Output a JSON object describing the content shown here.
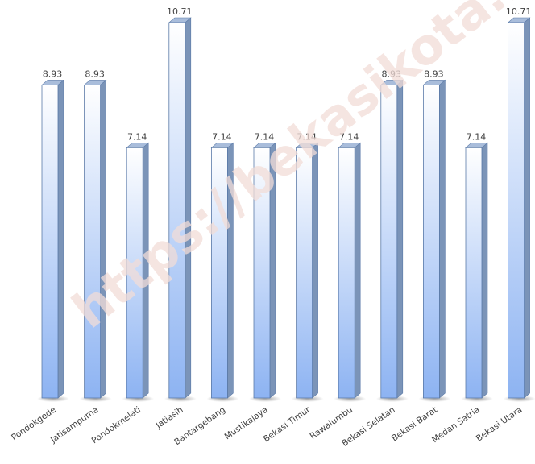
{
  "watermark": "https://bekasikota.bps.go.id",
  "chart_data": {
    "type": "bar",
    "title": "",
    "xlabel": "",
    "ylabel": "",
    "categories": [
      "Pondokgede",
      "Jatisampurna",
      "Pondokmelati",
      "Jatiasih",
      "Bantargebang",
      "Mustikajaya",
      "Bekasi Timur",
      "Rawalumbu",
      "Bekasi Selatan",
      "Bekasi Barat",
      "Medan Satria",
      "Bekasi Utara"
    ],
    "values": [
      8.93,
      8.93,
      7.14,
      10.71,
      7.14,
      7.14,
      7.14,
      7.14,
      8.93,
      8.93,
      7.14,
      10.71
    ],
    "value_labels": [
      "8.93",
      "8.93",
      "7.14",
      "10.71",
      "7.14",
      "7.14",
      "7.14",
      "7.14",
      "8.93",
      "8.93",
      "7.14",
      "10.71"
    ],
    "ylim": [
      0,
      10.71
    ],
    "grid": false,
    "legend": "none",
    "style": "3d-column",
    "colors": {
      "bar_top_light": "#ffffff",
      "bar_bottom": "#8db3f2",
      "bar_side": "#7b94b8",
      "bar_cap": "#a9bddb",
      "bar_outline": "#5b7aa8",
      "label": "#404040",
      "floor_shadow": "#b8b8b8"
    }
  }
}
